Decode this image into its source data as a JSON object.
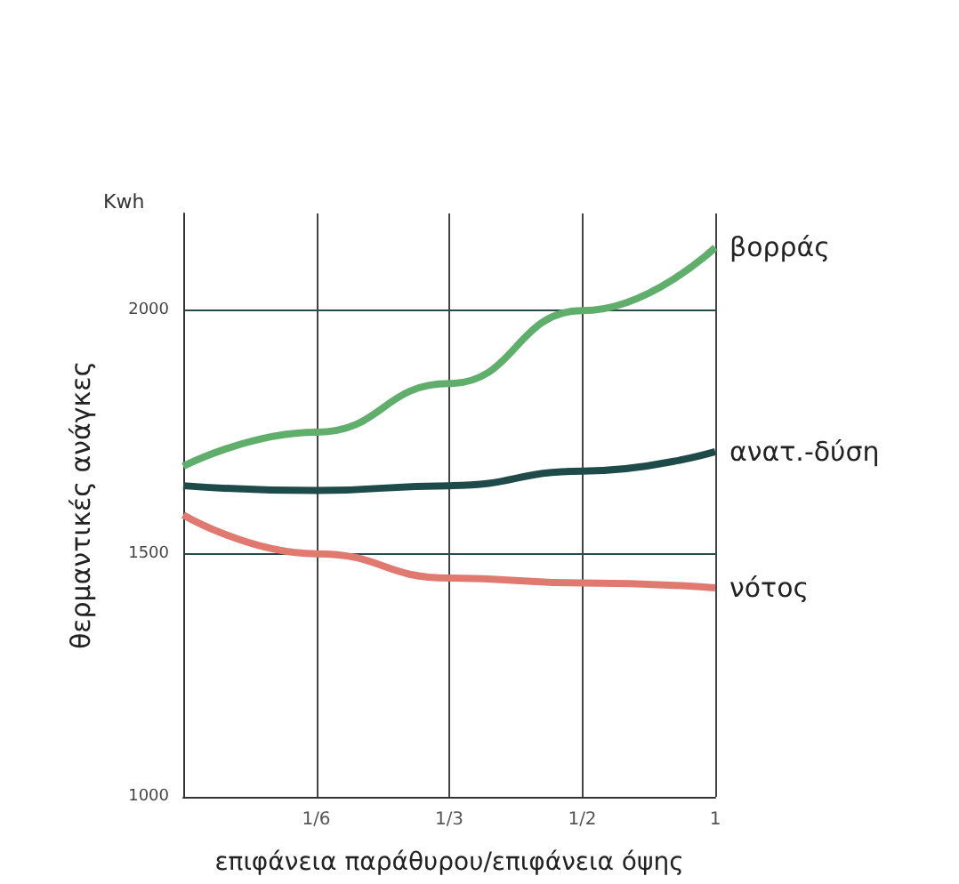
{
  "chart_data": {
    "type": "line",
    "xlabel": "επιφάνεια παράθυρου/επιφάνεια όψης",
    "ylabel": "θερμαντικές ανάγκες",
    "annotations": [
      "Kwh"
    ],
    "categories": [
      null,
      "1/6",
      "1/3",
      "1/2",
      "1"
    ],
    "series": [
      {
        "name": "βορράς",
        "color": "#5fae6c",
        "values": [
          1680,
          1750,
          1850,
          2000,
          2130
        ]
      },
      {
        "name": "ανατ.-δύση",
        "color": "#1f4a4a",
        "values": [
          1640,
          1630,
          1640,
          1670,
          1710
        ]
      },
      {
        "name": "νότος",
        "color": "#e07a70",
        "values": [
          1580,
          1500,
          1450,
          1440,
          1430
        ]
      }
    ],
    "ylim": [
      1000,
      2200
    ],
    "yticks": [
      1000,
      1500,
      2000
    ],
    "grid": true
  }
}
